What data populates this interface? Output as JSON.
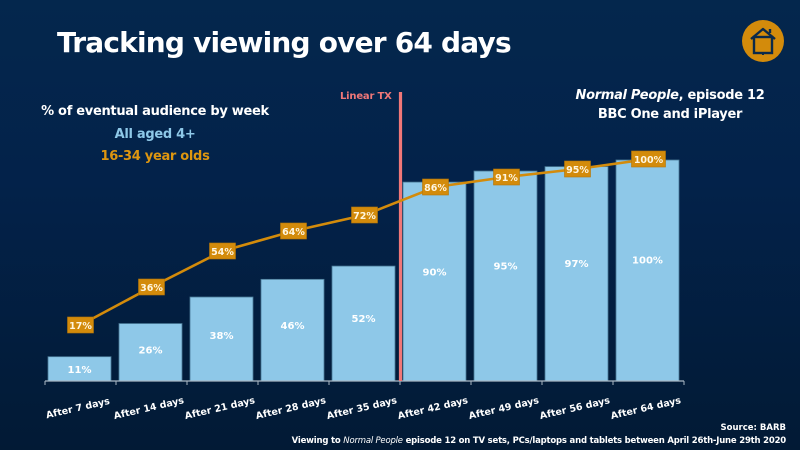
{
  "header": {
    "title": "Tracking viewing over 64 days",
    "logo_icon": "house-tv-icon",
    "logo_color": "#d38b0b"
  },
  "legend": {
    "heading": "% of eventual audience by week",
    "items": [
      {
        "label": "All aged 4+",
        "color": "#8ec8e8"
      },
      {
        "label": "16-34 year olds",
        "color": "#de960f"
      }
    ]
  },
  "programme": {
    "title": "Normal People",
    "suffix": ", episode 12",
    "channel": "BBC One and iPlayer"
  },
  "annotation": {
    "label": "Linear TX",
    "color": "#f07778",
    "after_category_index": 4
  },
  "footer": {
    "source": "Source: BARB",
    "note_prefix": "Viewing to ",
    "note_title": "Normal People",
    "note_suffix": " episode 12 on TV sets, PCs/laptops and tablets  between April 26th-June 29th 2020"
  },
  "chart_data": {
    "type": "bar",
    "title": "Tracking viewing over 64 days",
    "xlabel": "",
    "ylabel": "% of eventual audience by week",
    "ylim": [
      0,
      100
    ],
    "grid": false,
    "legend_position": "top-left",
    "categories": [
      "After 7 days",
      "After 14 days",
      "After 21 days",
      "After 28 days",
      "After 35 days",
      "After 42 days",
      "After 49 days",
      "After 56 days",
      "After 64 days"
    ],
    "series": [
      {
        "name": "All aged 4+",
        "type": "bar",
        "color": "#8ec8e8",
        "values": [
          11,
          26,
          38,
          46,
          52,
          90,
          95,
          97,
          100
        ],
        "labels": [
          "11%",
          "26%",
          "38%",
          "46%",
          "52%",
          "90%",
          "95%",
          "97%",
          "100%"
        ]
      },
      {
        "name": "16-34 year olds",
        "type": "line",
        "color": "#d38b0b",
        "values": [
          17,
          36,
          54,
          64,
          72,
          86,
          91,
          95,
          100
        ],
        "labels": [
          "17%",
          "36%",
          "54%",
          "64%",
          "72%",
          "86%",
          "91%",
          "95%",
          "100%"
        ]
      }
    ]
  }
}
